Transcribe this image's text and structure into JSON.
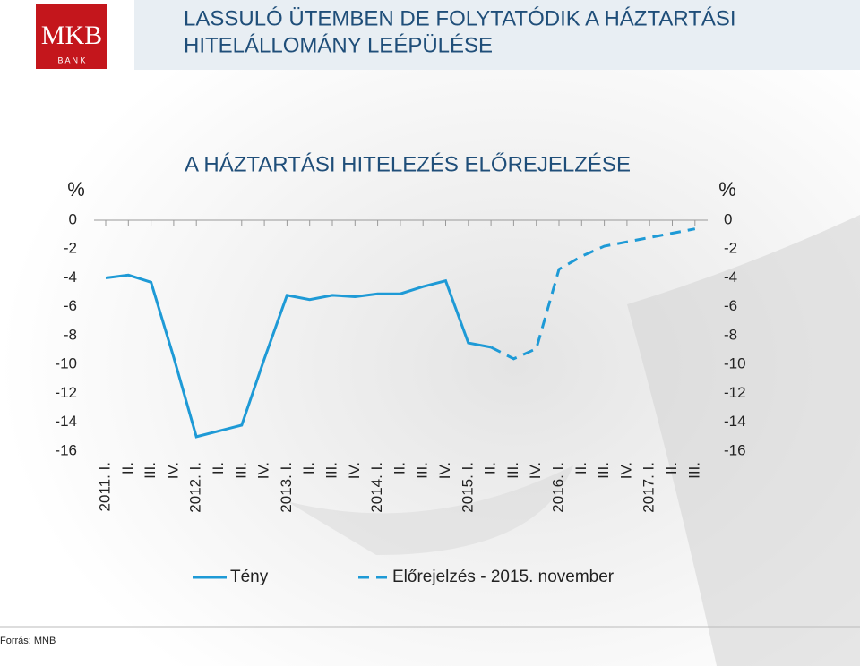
{
  "header": {
    "title_line1": "LASSULÓ ÜTEMBEN DE FOLYTATÓDIK A HÁZTARTÁSI",
    "title_line2": "HITELÁLLOMÁNY LEÉPÜLÉSE",
    "logo_name": "MKB",
    "logo_sub": "B A N K"
  },
  "footer": {
    "source": "Forrás: MNB"
  },
  "chart_data": {
    "type": "line",
    "title": "A HÁZTARTÁSI HITELEZÉS ELŐREJELZÉSE",
    "y_label": "%",
    "categories": [
      "2011. I.",
      "II.",
      "III.",
      "IV.",
      "2012. I.",
      "II.",
      "III.",
      "IV.",
      "2013. I.",
      "II.",
      "III.",
      "IV.",
      "2014. I.",
      "II.",
      "III.",
      "IV.",
      "2015. I.",
      "II.",
      "III.",
      "IV.",
      "2016. I.",
      "II.",
      "III.",
      "IV.",
      "2017. I.",
      "II.",
      "III."
    ],
    "series": [
      {
        "name": "Tény",
        "color": "#1e9ad6",
        "dashed": false,
        "values": [
          -4.0,
          -3.8,
          -4.3,
          -9.5,
          -15.0,
          -14.6,
          -14.2,
          -9.6,
          -5.2,
          -5.5,
          -5.2,
          -5.3,
          -5.1,
          -5.1,
          -4.6,
          -4.2,
          -8.5,
          -8.8,
          null,
          null,
          null,
          null,
          null,
          null,
          null,
          null,
          null
        ]
      },
      {
        "name": "Előrejelzés - 2015. november",
        "color": "#1e9ad6",
        "dashed": true,
        "values": [
          null,
          null,
          null,
          null,
          null,
          null,
          null,
          null,
          null,
          null,
          null,
          null,
          null,
          null,
          null,
          null,
          null,
          -8.8,
          -9.6,
          -8.9,
          -3.4,
          -2.5,
          -1.8,
          -1.5,
          -1.2,
          -0.9,
          -0.6
        ]
      }
    ],
    "ylim": [
      -16,
      0
    ],
    "yticks": [
      0,
      -2,
      -4,
      -6,
      -8,
      -10,
      -12,
      -14,
      -16
    ]
  }
}
